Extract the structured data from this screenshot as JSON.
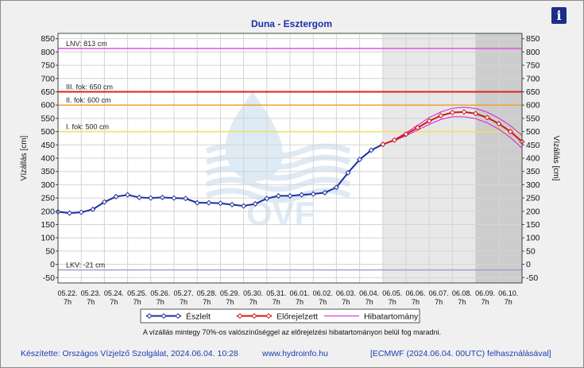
{
  "title": "Duna - Esztergom",
  "info_icon": "info-icon",
  "colors": {
    "observed": "#1c2fa0",
    "forecast": "#d01818",
    "band": "#d020d0",
    "lnv": "#e050e0",
    "level3": "#e02020",
    "level2": "#f0a030",
    "level1": "#f0e060",
    "lkv": "#a0a0d0",
    "title": "#1a2fa8"
  },
  "chart_data": {
    "type": "line",
    "title": "Duna - Esztergom",
    "ylabel": "Vízállás [cm]",
    "ylabel_right": "Vízállás [cm]",
    "ylim": [
      -70,
      870
    ],
    "yticks": [
      -50,
      0,
      50,
      100,
      150,
      200,
      250,
      300,
      350,
      400,
      450,
      500,
      550,
      600,
      650,
      700,
      750,
      800,
      850
    ],
    "xlim": [
      0,
      20
    ],
    "x_ticks": [
      "05.22.",
      "05.23.",
      "05.24.",
      "05.25.",
      "05.26.",
      "05.27.",
      "05.28.",
      "05.29.",
      "05.30.",
      "05.31.",
      "06.01.",
      "06.02.",
      "06.03.",
      "06.04.",
      "06.05.",
      "06.06.",
      "06.07.",
      "06.08.",
      "06.09.",
      "06.10."
    ],
    "x_tick_sub": "7h",
    "shaded_forecast_start": 14,
    "shaded_dark_start": 18,
    "thresholds": [
      {
        "label": "LNV: 813 cm",
        "value": 813,
        "color_key": "lnv"
      },
      {
        "label": "III. fok: 650 cm",
        "value": 650,
        "color_key": "level3"
      },
      {
        "label": "II. fok: 600 cm",
        "value": 600,
        "color_key": "level2"
      },
      {
        "label": "I. fok: 500 cm",
        "value": 500,
        "color_key": "level1"
      },
      {
        "label": "LKV: -21 cm",
        "value": -21,
        "color_key": "lkv"
      }
    ],
    "series": [
      {
        "name": "Észlelt",
        "x": [
          0,
          0.5,
          1,
          1.5,
          2,
          2.5,
          3,
          3.5,
          4,
          4.5,
          5,
          5.5,
          6,
          6.5,
          7,
          7.5,
          8,
          8.5,
          9,
          9.5,
          10,
          10.5,
          11,
          11.5,
          12,
          12.5,
          13,
          13.5,
          14
        ],
        "values": [
          198,
          193,
          196,
          207,
          235,
          255,
          262,
          252,
          250,
          252,
          250,
          248,
          232,
          232,
          230,
          225,
          220,
          228,
          248,
          258,
          258,
          262,
          265,
          270,
          290,
          345,
          395,
          430,
          452
        ]
      },
      {
        "name": "Előrejelzett",
        "x": [
          14,
          14.5,
          15,
          15.5,
          16,
          16.5,
          17,
          17.5,
          18,
          18.5,
          19,
          19.5,
          20
        ],
        "values": [
          452,
          468,
          490,
          515,
          540,
          560,
          572,
          574,
          568,
          553,
          530,
          500,
          462
        ]
      },
      {
        "name": "Hibatartomány",
        "x": [
          14,
          14.5,
          15,
          15.5,
          16,
          16.5,
          17,
          17.5,
          18,
          18.5,
          19,
          19.5,
          20
        ],
        "upper": [
          452,
          470,
          496,
          524,
          553,
          574,
          588,
          592,
          587,
          573,
          551,
          522,
          486
        ],
        "lower": [
          452,
          466,
          484,
          506,
          527,
          546,
          556,
          556,
          549,
          533,
          509,
          478,
          438
        ]
      }
    ],
    "note": "A vízállás mintegy 70%-os valószínűséggel az előrejelzési hibatartományon belül fog maradni."
  },
  "footer": {
    "left": "Készítette: Országos Vízjelző Szolgálat, 2024.06.04. 10:28",
    "middle": "www.hydroinfo.hu",
    "right": "[ECMWF (2024.06.04. 00UTC) felhasználásával]"
  }
}
